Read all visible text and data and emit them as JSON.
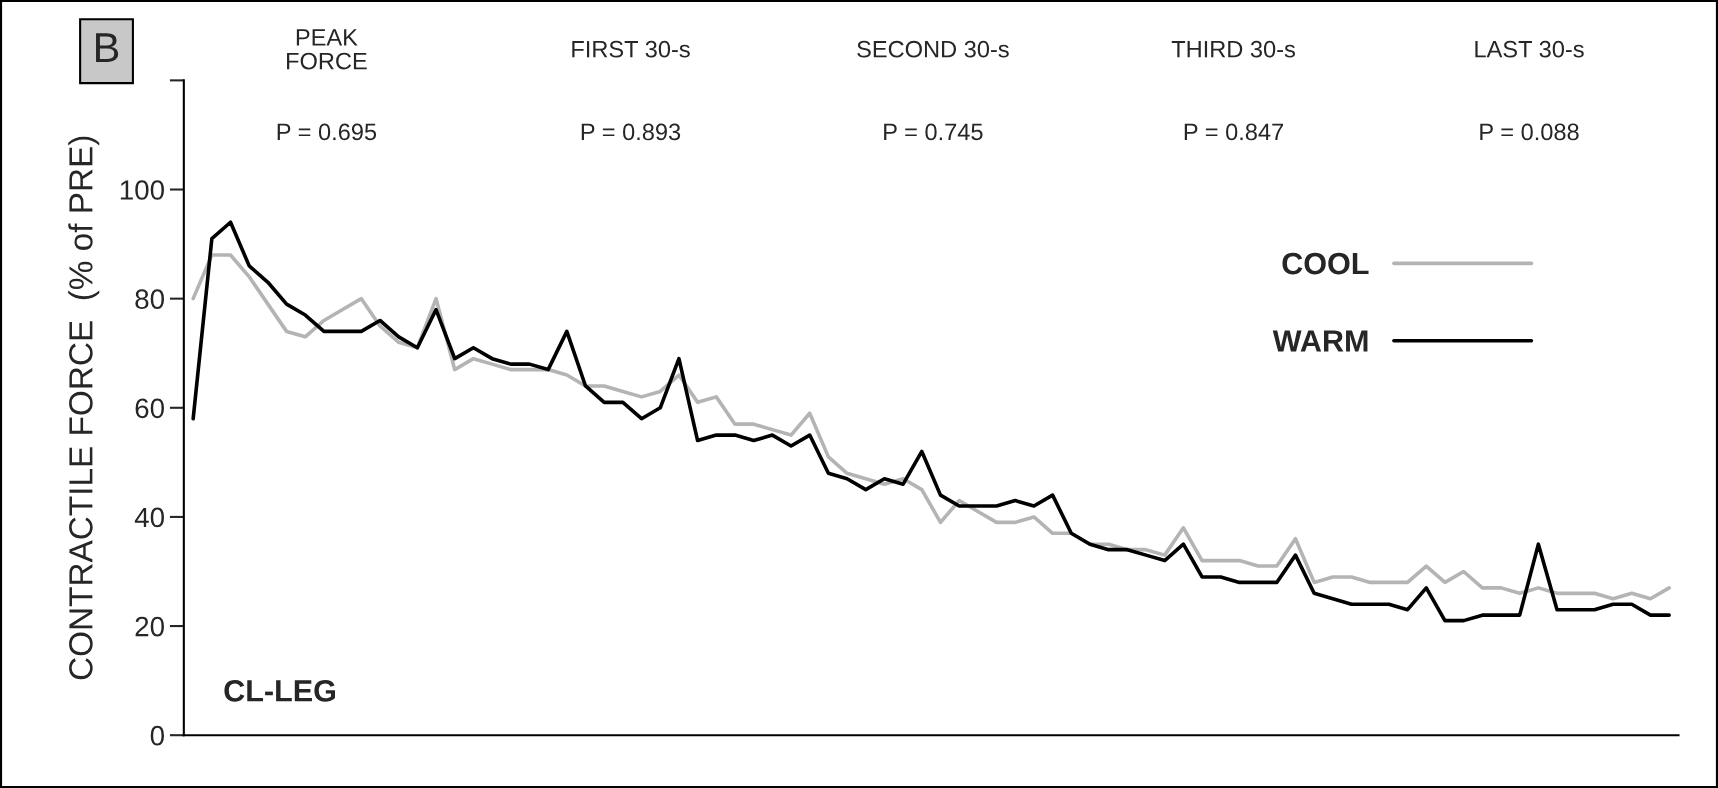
{
  "chart_data": {
    "type": "line",
    "ylabel": "CONTRACTILE FORCE  (% of PRE)",
    "annotations": [
      "B",
      "PEAK\nFORCE",
      "FIRST 30-s",
      "SECOND 30-s",
      "THIRD 30-s",
      "LAST 30-s",
      "P = 0.695",
      "P = 0.893",
      "P = 0.745",
      "P = 0.847",
      "P = 0.088",
      "CL-LEG"
    ],
    "categories": [
      null,
      null,
      null,
      null,
      null,
      null,
      null,
      null,
      null,
      null,
      null,
      null,
      null,
      null,
      null,
      null,
      null,
      null,
      null,
      null,
      null,
      null,
      null,
      null,
      null,
      null,
      null,
      null,
      null,
      null,
      null,
      null,
      null,
      null,
      null,
      null,
      null,
      null,
      null,
      null,
      null,
      null,
      null,
      null,
      null,
      null,
      null,
      null,
      null,
      null,
      null,
      null,
      null,
      null,
      null,
      null,
      null,
      null,
      null,
      null,
      null,
      null,
      null,
      null,
      null,
      null,
      null,
      null,
      null,
      null,
      null,
      null,
      null,
      null,
      null,
      null,
      null,
      null,
      null,
      null
    ],
    "series": [
      {
        "name": "COOL",
        "color": "#b4b4b4",
        "values": [
          80,
          88,
          88,
          84,
          79,
          74,
          73,
          76,
          78,
          80,
          75,
          72,
          71,
          80,
          67,
          69,
          68,
          67,
          67,
          67,
          66,
          64,
          64,
          63,
          62,
          63,
          66,
          61,
          62,
          57,
          57,
          56,
          55,
          59,
          51,
          48,
          47,
          46,
          47,
          45,
          39,
          43,
          41,
          39,
          39,
          40,
          37,
          37,
          35,
          35,
          34,
          34,
          33,
          38,
          32,
          32,
          32,
          31,
          31,
          36,
          28,
          29,
          29,
          28,
          28,
          28,
          31,
          28,
          30,
          27,
          27,
          26,
          27,
          26,
          26,
          26,
          25,
          26,
          25,
          27
        ]
      },
      {
        "name": "WARM",
        "color": "#000000",
        "values": [
          58,
          91,
          94,
          86,
          83,
          79,
          77,
          74,
          74,
          74,
          76,
          73,
          71,
          78,
          69,
          71,
          69,
          68,
          68,
          67,
          74,
          64,
          61,
          61,
          58,
          60,
          69,
          54,
          55,
          55,
          54,
          55,
          53,
          55,
          48,
          47,
          45,
          47,
          46,
          52,
          44,
          42,
          42,
          42,
          43,
          42,
          44,
          37,
          35,
          34,
          34,
          33,
          32,
          35,
          29,
          29,
          28,
          28,
          28,
          33,
          26,
          25,
          24,
          24,
          24,
          23,
          27,
          21,
          21,
          22,
          22,
          22,
          35,
          23,
          23,
          23,
          24,
          24,
          22,
          22
        ]
      }
    ],
    "ylim": [
      0,
      120
    ],
    "yticks": [
      0,
      20,
      40,
      60,
      80,
      100,
      {
        "value": 120,
        "label": null
      }
    ],
    "legend": "top right",
    "grid": false,
    "line_style": "solid",
    "marker": "none",
    "tick_labels": "y"
  }
}
